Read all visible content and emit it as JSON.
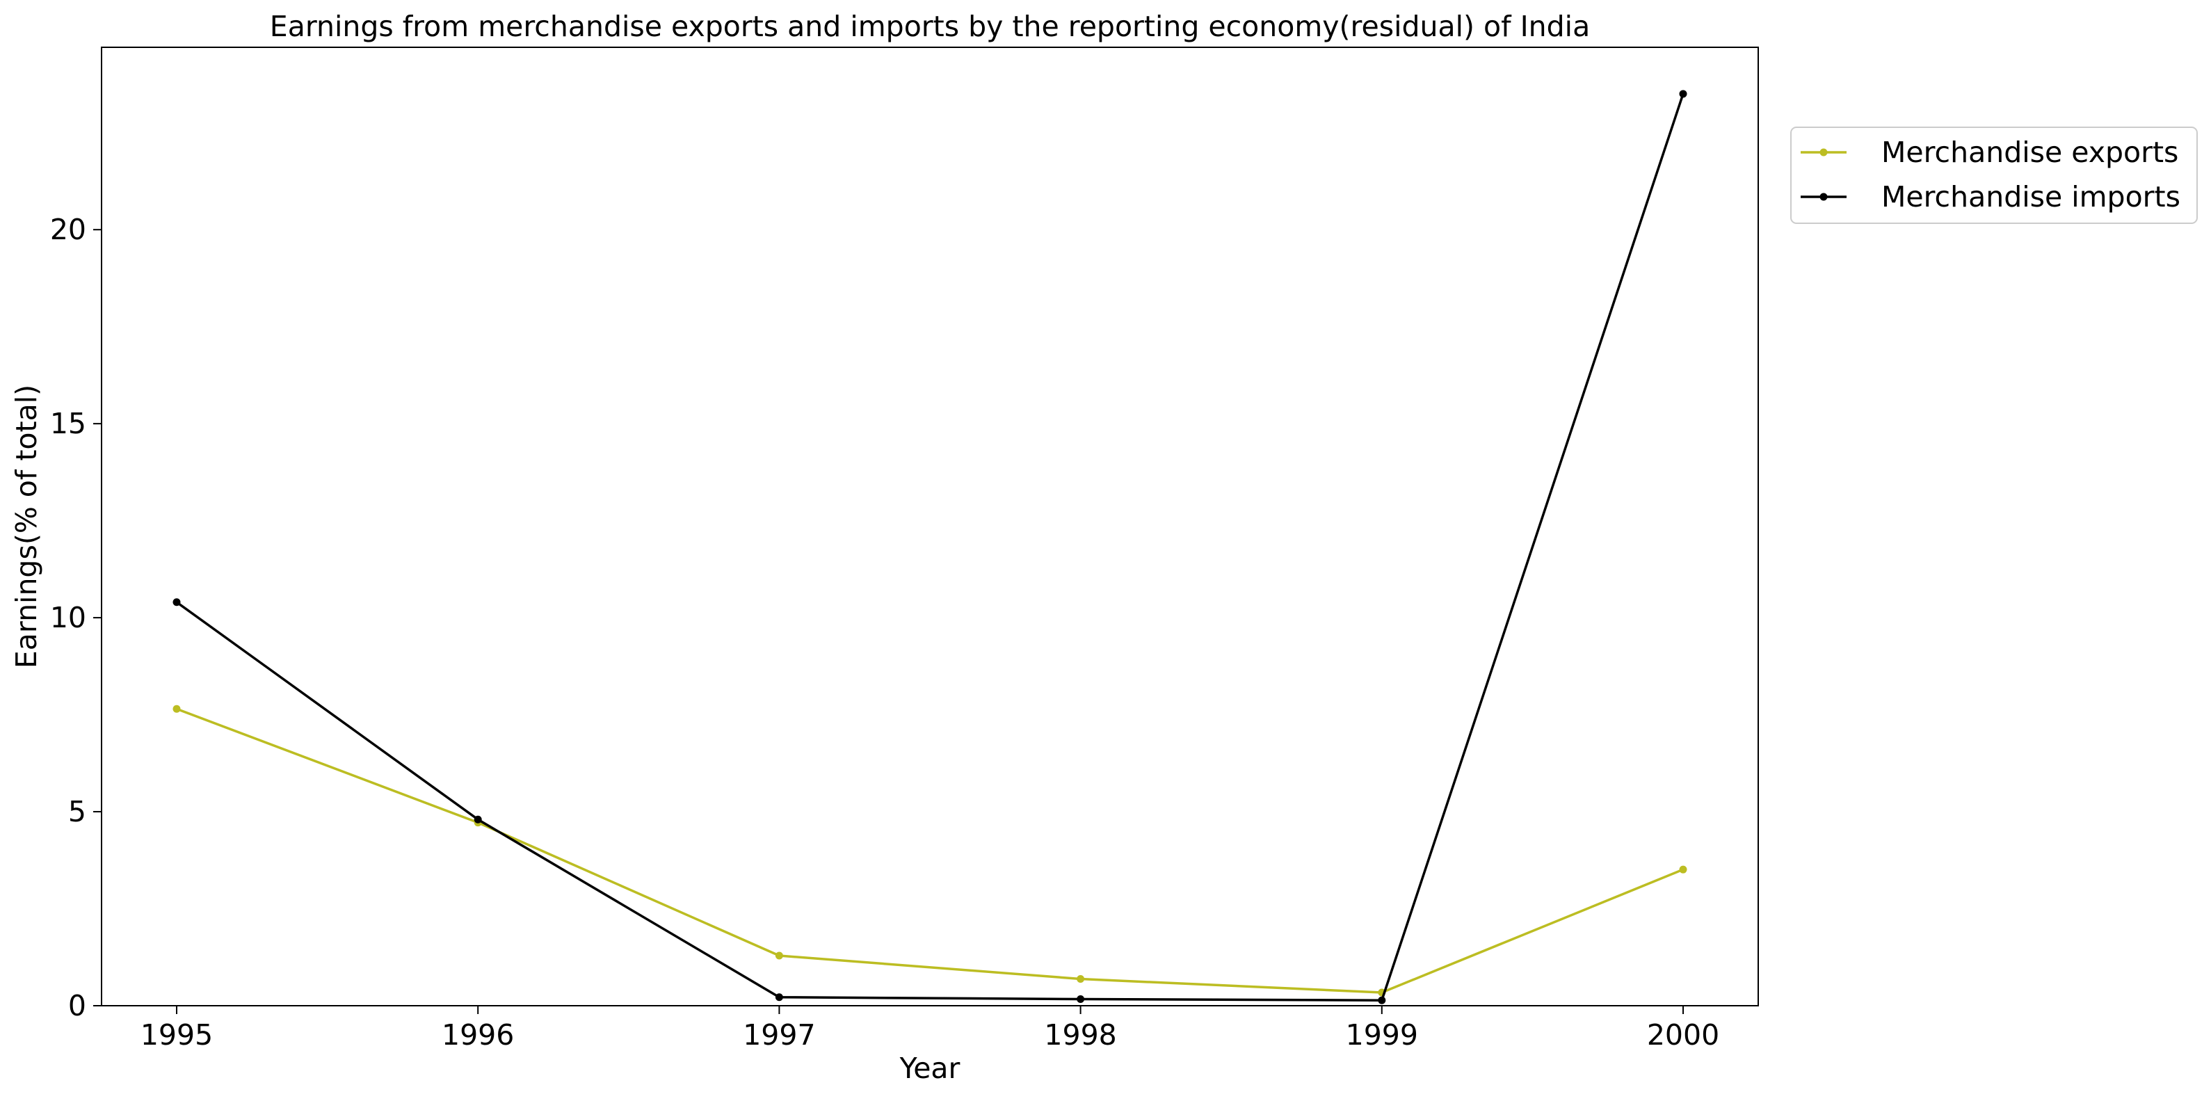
{
  "chart_data": {
    "type": "line",
    "title": "Earnings from merchandise exports and imports by the reporting economy(residual) of India",
    "xlabel": "Year",
    "ylabel": "Earnings(% of total)",
    "x": [
      1995,
      1996,
      1997,
      1998,
      1999,
      2000
    ],
    "x_tick_labels": [
      "1995",
      "1996",
      "1997",
      "1998",
      "1999",
      "2000"
    ],
    "y_ticks": [
      0,
      5,
      10,
      15,
      20
    ],
    "y_tick_labels": [
      "0",
      "5",
      "10",
      "15",
      "20"
    ],
    "ylim": [
      0,
      24.7
    ],
    "grid": false,
    "legend_position": "upper right, outside plot area",
    "series": [
      {
        "name": "Merchandise exports",
        "color": "#bcbd22",
        "values": [
          7.65,
          4.72,
          1.29,
          0.69,
          0.34,
          3.51
        ]
      },
      {
        "name": "Merchandise imports",
        "color": "#000000",
        "values": [
          10.4,
          4.8,
          0.22,
          0.17,
          0.14,
          23.5
        ]
      }
    ]
  }
}
